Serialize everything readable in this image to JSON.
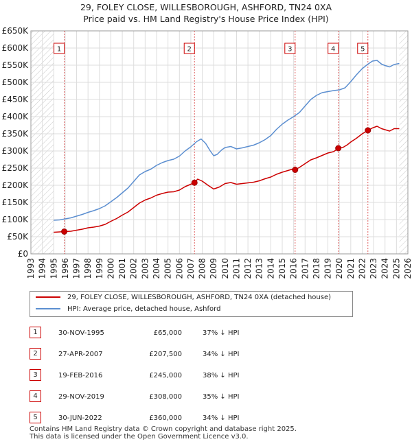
{
  "title_line1": "29, FOLEY CLOSE, WILLESBOROUGH, ASHFORD, TN24 0XA",
  "title_line2": "Price paid vs. HM Land Registry's House Price Index (HPI)",
  "chart_data": {
    "type": "line",
    "title": "29, FOLEY CLOSE, WILLESBOROUGH, ASHFORD, TN24 0XA — Price paid vs. HM Land Registry's House Price Index (HPI)",
    "xlabel": "",
    "ylabel": "",
    "xlim": [
      1993,
      2026
    ],
    "ylim": [
      0,
      650000
    ],
    "y_ticks": [
      0,
      50000,
      100000,
      150000,
      200000,
      250000,
      300000,
      350000,
      400000,
      450000,
      500000,
      550000,
      600000,
      650000
    ],
    "y_tick_labels": [
      "£0",
      "£50K",
      "£100K",
      "£150K",
      "£200K",
      "£250K",
      "£300K",
      "£350K",
      "£400K",
      "£450K",
      "£500K",
      "£550K",
      "£600K",
      "£650K"
    ],
    "x_ticks": [
      1993,
      1994,
      1995,
      1996,
      1997,
      1998,
      1999,
      2000,
      2001,
      2002,
      2003,
      2004,
      2005,
      2006,
      2007,
      2008,
      2009,
      2010,
      2011,
      2012,
      2013,
      2014,
      2015,
      2016,
      2017,
      2018,
      2019,
      2020,
      2021,
      2022,
      2023,
      2024,
      2025,
      2026
    ],
    "x_tick_labels": [
      "1993",
      "1994",
      "1995",
      "1996",
      "1997",
      "1998",
      "1999",
      "2000",
      "2001",
      "2002",
      "2003",
      "2004",
      "2005",
      "2006",
      "2007",
      "2008",
      "2009",
      "2010",
      "2011",
      "2012",
      "2013",
      "2014",
      "2015",
      "2016",
      "2017",
      "2018",
      "2019",
      "2020",
      "2021",
      "2022",
      "2023",
      "2024",
      "2025",
      "2026"
    ],
    "grid": true,
    "data_range": [
      1995.0,
      2025.25
    ],
    "series": [
      {
        "name": "29, FOLEY CLOSE, WILLESBOROUGH, ASHFORD, TN24 0XA (detached house)",
        "color": "#cc0000",
        "x": [
          1995.0,
          1995.5,
          1995.92,
          1996.5,
          1997.0,
          1997.5,
          1998.0,
          1998.5,
          1999.0,
          1999.5,
          2000.0,
          2000.5,
          2001.0,
          2001.5,
          2002.0,
          2002.5,
          2003.0,
          2003.5,
          2004.0,
          2004.5,
          2005.0,
          2005.5,
          2006.0,
          2006.5,
          2007.0,
          2007.32,
          2007.6,
          2008.0,
          2008.5,
          2009.0,
          2009.5,
          2010.0,
          2010.5,
          2011.0,
          2011.5,
          2012.0,
          2012.5,
          2013.0,
          2013.5,
          2014.0,
          2014.5,
          2015.0,
          2015.5,
          2016.0,
          2016.13,
          2016.5,
          2017.0,
          2017.5,
          2018.0,
          2018.5,
          2019.0,
          2019.5,
          2019.91,
          2020.3,
          2020.7,
          2021.0,
          2021.5,
          2022.0,
          2022.5,
          2022.9,
          2023.3,
          2023.7,
          2024.0,
          2024.4,
          2024.8,
          2025.25
        ],
        "y": [
          63000,
          64000,
          65000,
          66000,
          69000,
          72000,
          76000,
          78000,
          81000,
          86000,
          95000,
          103000,
          113000,
          122000,
          135000,
          148000,
          157000,
          163000,
          171000,
          176000,
          180000,
          181000,
          186000,
          196000,
          203000,
          207500,
          218000,
          212000,
          200000,
          189000,
          195000,
          205000,
          208000,
          203000,
          205000,
          207000,
          209000,
          213000,
          219000,
          224000,
          232000,
          238000,
          243000,
          248000,
          245000,
          252000,
          263000,
          274000,
          280000,
          287000,
          294000,
          298000,
          308000,
          310000,
          318000,
          326000,
          337000,
          350000,
          360000,
          367000,
          372000,
          365000,
          362000,
          358000,
          365000,
          365000
        ]
      },
      {
        "name": "HPI: Average price, detached house, Ashford",
        "color": "#5b8ed0",
        "x": [
          1995.0,
          1995.5,
          1996.0,
          1996.5,
          1997.0,
          1997.5,
          1998.0,
          1998.5,
          1999.0,
          1999.5,
          2000.0,
          2000.5,
          2001.0,
          2001.5,
          2002.0,
          2002.5,
          2003.0,
          2003.5,
          2004.0,
          2004.5,
          2005.0,
          2005.5,
          2006.0,
          2006.5,
          2007.0,
          2007.5,
          2007.9,
          2008.3,
          2008.7,
          2009.0,
          2009.3,
          2009.7,
          2010.0,
          2010.5,
          2011.0,
          2011.5,
          2012.0,
          2012.5,
          2013.0,
          2013.5,
          2014.0,
          2014.5,
          2015.0,
          2015.5,
          2016.0,
          2016.5,
          2017.0,
          2017.5,
          2018.0,
          2018.5,
          2019.0,
          2019.5,
          2020.0,
          2020.5,
          2021.0,
          2021.5,
          2022.0,
          2022.5,
          2022.9,
          2023.3,
          2023.7,
          2024.0,
          2024.4,
          2024.8,
          2025.25
        ],
        "y": [
          98000,
          99000,
          102000,
          105000,
          110000,
          115000,
          121000,
          126000,
          132000,
          140000,
          152000,
          164000,
          178000,
          192000,
          211000,
          230000,
          240000,
          247000,
          258000,
          266000,
          272000,
          276000,
          285000,
          300000,
          312000,
          327000,
          335000,
          322000,
          300000,
          286000,
          290000,
          303000,
          310000,
          313000,
          306000,
          309000,
          313000,
          317000,
          324000,
          333000,
          345000,
          363000,
          378000,
          390000,
          400000,
          412000,
          431000,
          450000,
          462000,
          470000,
          473000,
          476000,
          478000,
          484000,
          502000,
          522000,
          540000,
          553000,
          562000,
          564000,
          553000,
          549000,
          545000,
          552000,
          555000
        ]
      }
    ],
    "sales": [
      {
        "label": "1",
        "x": 1995.92,
        "y": 65000
      },
      {
        "label": "2",
        "x": 2007.32,
        "y": 207500
      },
      {
        "label": "3",
        "x": 2016.13,
        "y": 245000
      },
      {
        "label": "4",
        "x": 2019.91,
        "y": 308000
      },
      {
        "label": "5",
        "x": 2022.5,
        "y": 360000
      }
    ]
  },
  "legend": {
    "property_label": "29, FOLEY CLOSE, WILLESBOROUGH, ASHFORD, TN24 0XA (detached house)",
    "hpi_label": "HPI: Average price, detached house, Ashford"
  },
  "sales_table": [
    {
      "num": "1",
      "date": "30-NOV-1995",
      "price": "£65,000",
      "hpi": "37% ↓ HPI"
    },
    {
      "num": "2",
      "date": "27-APR-2007",
      "price": "£207,500",
      "hpi": "34% ↓ HPI"
    },
    {
      "num": "3",
      "date": "19-FEB-2016",
      "price": "£245,000",
      "hpi": "38% ↓ HPI"
    },
    {
      "num": "4",
      "date": "29-NOV-2019",
      "price": "£308,000",
      "hpi": "35% ↓ HPI"
    },
    {
      "num": "5",
      "date": "30-JUN-2022",
      "price": "£360,000",
      "hpi": "34% ↓ HPI"
    }
  ],
  "footer_line1": "Contains HM Land Registry data © Crown copyright and database right 2025.",
  "footer_line2": "This data is licensed under the Open Government Licence v3.0."
}
